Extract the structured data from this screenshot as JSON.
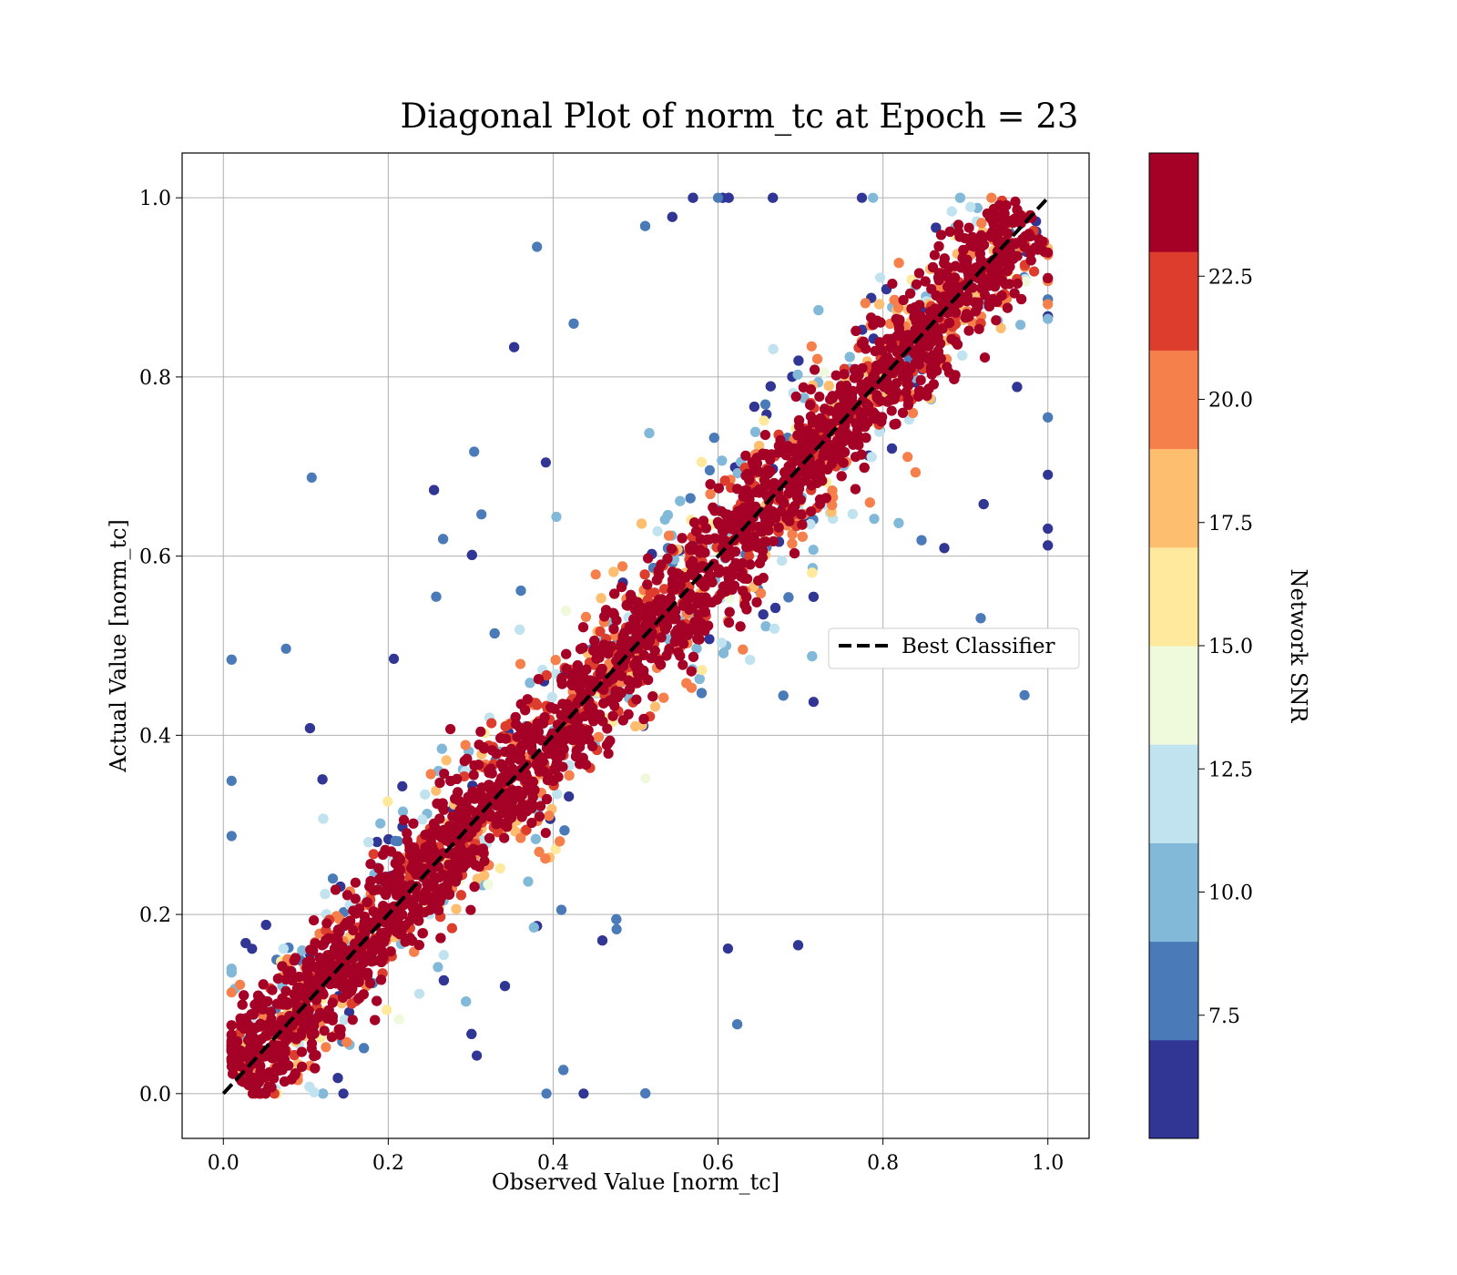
{
  "chart_data": {
    "type": "scatter",
    "title": "Diagonal Plot of norm_tc at Epoch = 23",
    "xlabel": "Observed Value [norm_tc]",
    "ylabel": "Actual Value [norm_tc]",
    "xlim": [
      -0.05,
      1.05
    ],
    "ylim": [
      -0.05,
      1.05
    ],
    "x_ticks": [
      0.0,
      0.2,
      0.4,
      0.6,
      0.8,
      1.0
    ],
    "y_ticks": [
      0.0,
      0.2,
      0.4,
      0.6,
      0.8,
      1.0
    ],
    "x_tick_labels": [
      "0.0",
      "0.2",
      "0.4",
      "0.6",
      "0.8",
      "1.0"
    ],
    "y_tick_labels": [
      "0.0",
      "0.2",
      "0.4",
      "0.6",
      "0.8",
      "1.0"
    ],
    "grid": true,
    "legend": {
      "placement": "center-right",
      "entries": [
        {
          "label": "Best Classifier",
          "style": "dashed",
          "color": "#000000"
        }
      ]
    },
    "reference_line": {
      "name": "Best Classifier",
      "x": [
        0.0,
        1.0
      ],
      "y": [
        0.0,
        1.0
      ]
    },
    "points_description": {
      "distribution": "tight band around y = x for high SNR, wider scatter for low SNR",
      "x_range": [
        0.0,
        1.0
      ],
      "y_range": [
        0.0,
        1.0
      ]
    },
    "colorbar": {
      "label": "Network SNR",
      "range": [
        5.0,
        25.0
      ],
      "bounds": [
        5.0,
        7.0,
        9.0,
        11.0,
        13.0,
        15.0,
        17.0,
        19.0,
        21.0,
        23.0,
        25.0
      ],
      "ticks": [
        7.5,
        10.0,
        12.5,
        15.0,
        17.5,
        20.0,
        22.5
      ],
      "tick_labels": [
        "7.5",
        "10.0",
        "12.5",
        "15.0",
        "17.5",
        "20.0",
        "22.5"
      ],
      "colors": [
        "#313695",
        "#4a7ab7",
        "#83b9d8",
        "#c0e3ef",
        "#eff9db",
        "#fee99d",
        "#fdbe70",
        "#f6804c",
        "#dd3d2d",
        "#a50026"
      ]
    }
  }
}
